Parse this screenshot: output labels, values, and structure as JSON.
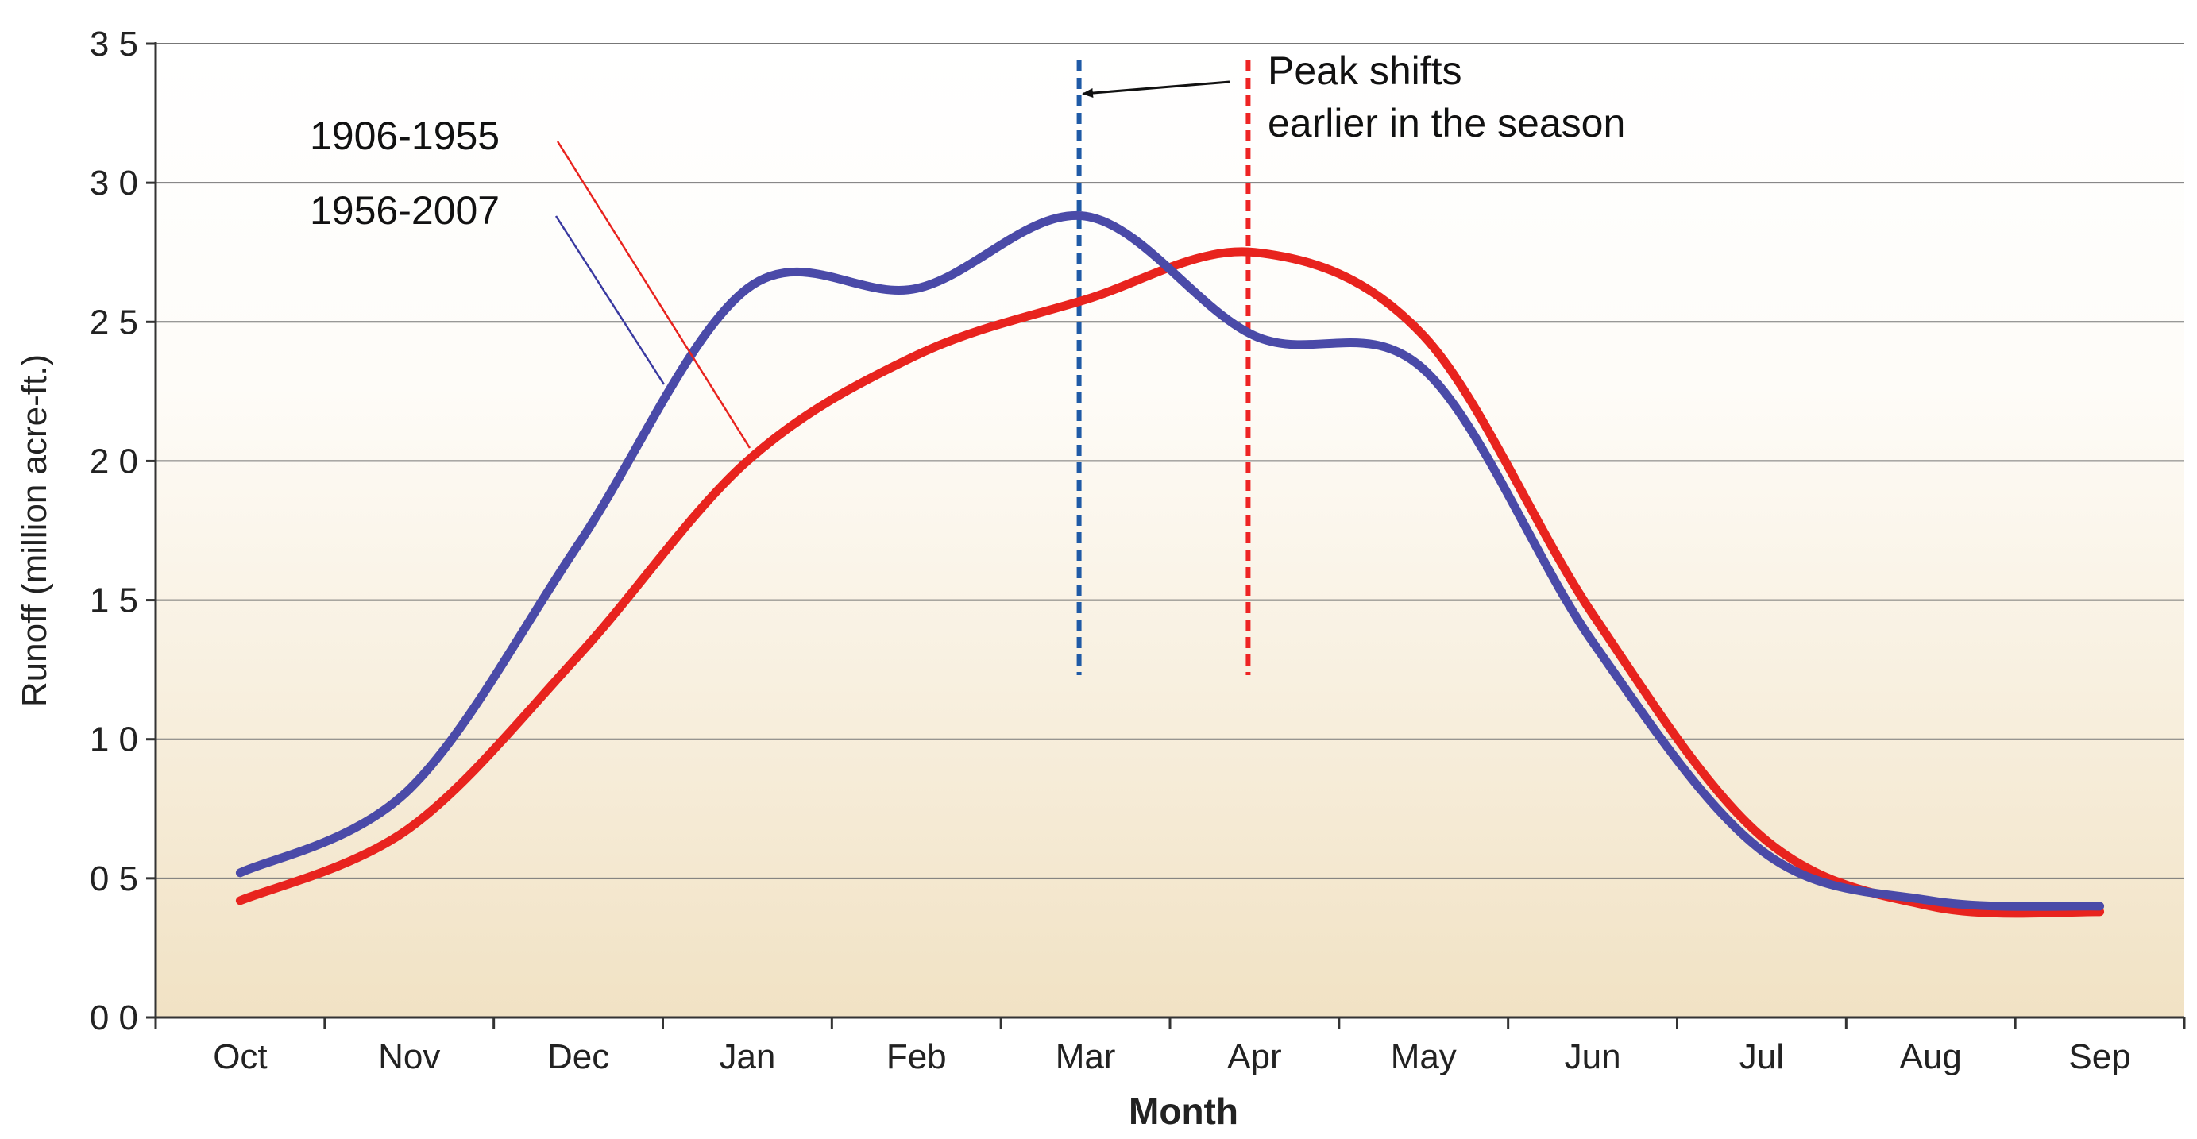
{
  "chart_data": {
    "type": "line",
    "title": "",
    "xlabel": "Month",
    "ylabel": "Runoff (million acre-ft.)",
    "categories": [
      "Oct",
      "Nov",
      "Dec",
      "Jan",
      "Feb",
      "Mar",
      "Apr",
      "May",
      "Jun",
      "Jul",
      "Aug",
      "Sep"
    ],
    "ylim": [
      0,
      3.5
    ],
    "yticks": [
      0,
      0.5,
      1.0,
      1.5,
      2.0,
      2.5,
      3.0,
      3.5
    ],
    "ytick_labels": [
      "0 0",
      "0 5",
      "1 0",
      "1 5",
      "2 0",
      "2 5",
      "3 0",
      "3 5"
    ],
    "series": [
      {
        "name": "1906-1955",
        "color": "#e8231e",
        "values": [
          0.42,
          0.68,
          1.3,
          2.0,
          2.38,
          2.58,
          2.75,
          2.45,
          1.45,
          0.65,
          0.4,
          0.38
        ]
      },
      {
        "name": "1956-2007",
        "color": "#4a4aa8",
        "values": [
          0.52,
          0.82,
          1.7,
          2.62,
          2.62,
          2.88,
          2.45,
          2.33,
          1.35,
          0.6,
          0.42,
          0.4
        ]
      }
    ],
    "reference_lines": [
      {
        "category": "Mar",
        "color": "#1f5aa6",
        "style": "dashed"
      },
      {
        "category": "Apr",
        "color": "#ee2424",
        "style": "dashed"
      }
    ],
    "annotation": {
      "line1": "Peak shifts",
      "line2": "earlier in the season"
    },
    "legend_labels": [
      "1906-1955",
      "1956-2007"
    ],
    "colors": {
      "grid": "#777777",
      "axis": "#333333",
      "bg_top": "#ffffff",
      "bg_bottom": "#f1e3c6"
    }
  }
}
